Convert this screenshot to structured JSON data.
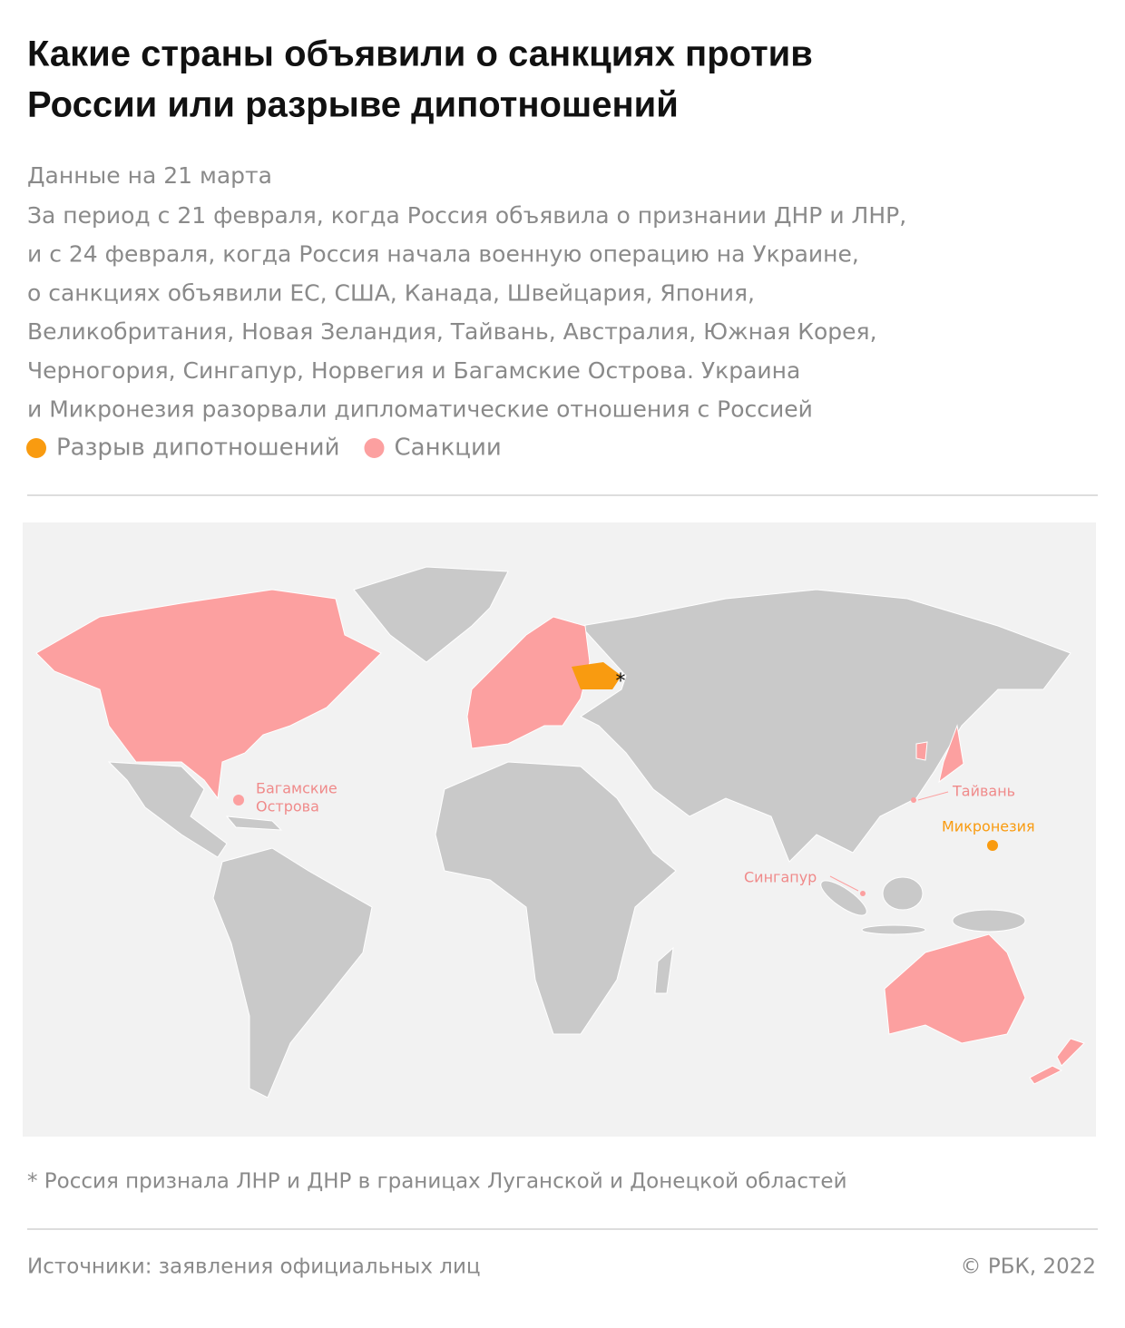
{
  "header": {
    "title_lines": [
      "Какие страны объявили о санкциях против",
      "России или разрыве дипотношений"
    ],
    "date": "Данные на 21 марта",
    "description_lines": [
      "За период с 21 февраля, когда Россия объявила о признании ДНР и ЛНР,",
      "и с 24 февраля, когда Россия начала военную операцию на Украине,",
      "о санкциях объявили ЕС, США, Канада, Швейцария, Япония,",
      "Великобритания, Новая Зеландия, Тайвань, Австралия, Южная Корея,",
      "Черногория, Сингапур, Норвегия и Багамские Острова. Украина",
      "и Микронезия разорвали дипломатические отношения с Россией"
    ]
  },
  "legend": [
    {
      "label": "Разрыв дипотношений",
      "color": "#f99b10"
    },
    {
      "label": "Санкции",
      "color": "#fca0a0"
    }
  ],
  "map": {
    "labels": {
      "bahamas_lines": [
        "Багамские",
        "Острова"
      ],
      "taiwan": "Тайвань",
      "micronesia": "Микронезия",
      "singapore": "Сингапур",
      "ukraine_note": "*"
    }
  },
  "footnote": "* Россия признала ЛНР и ДНР в границах Луганской и Донецкой областей",
  "footer": {
    "source": "Источники: заявления официальных лиц",
    "copyright": "© РБК, 2022"
  }
}
